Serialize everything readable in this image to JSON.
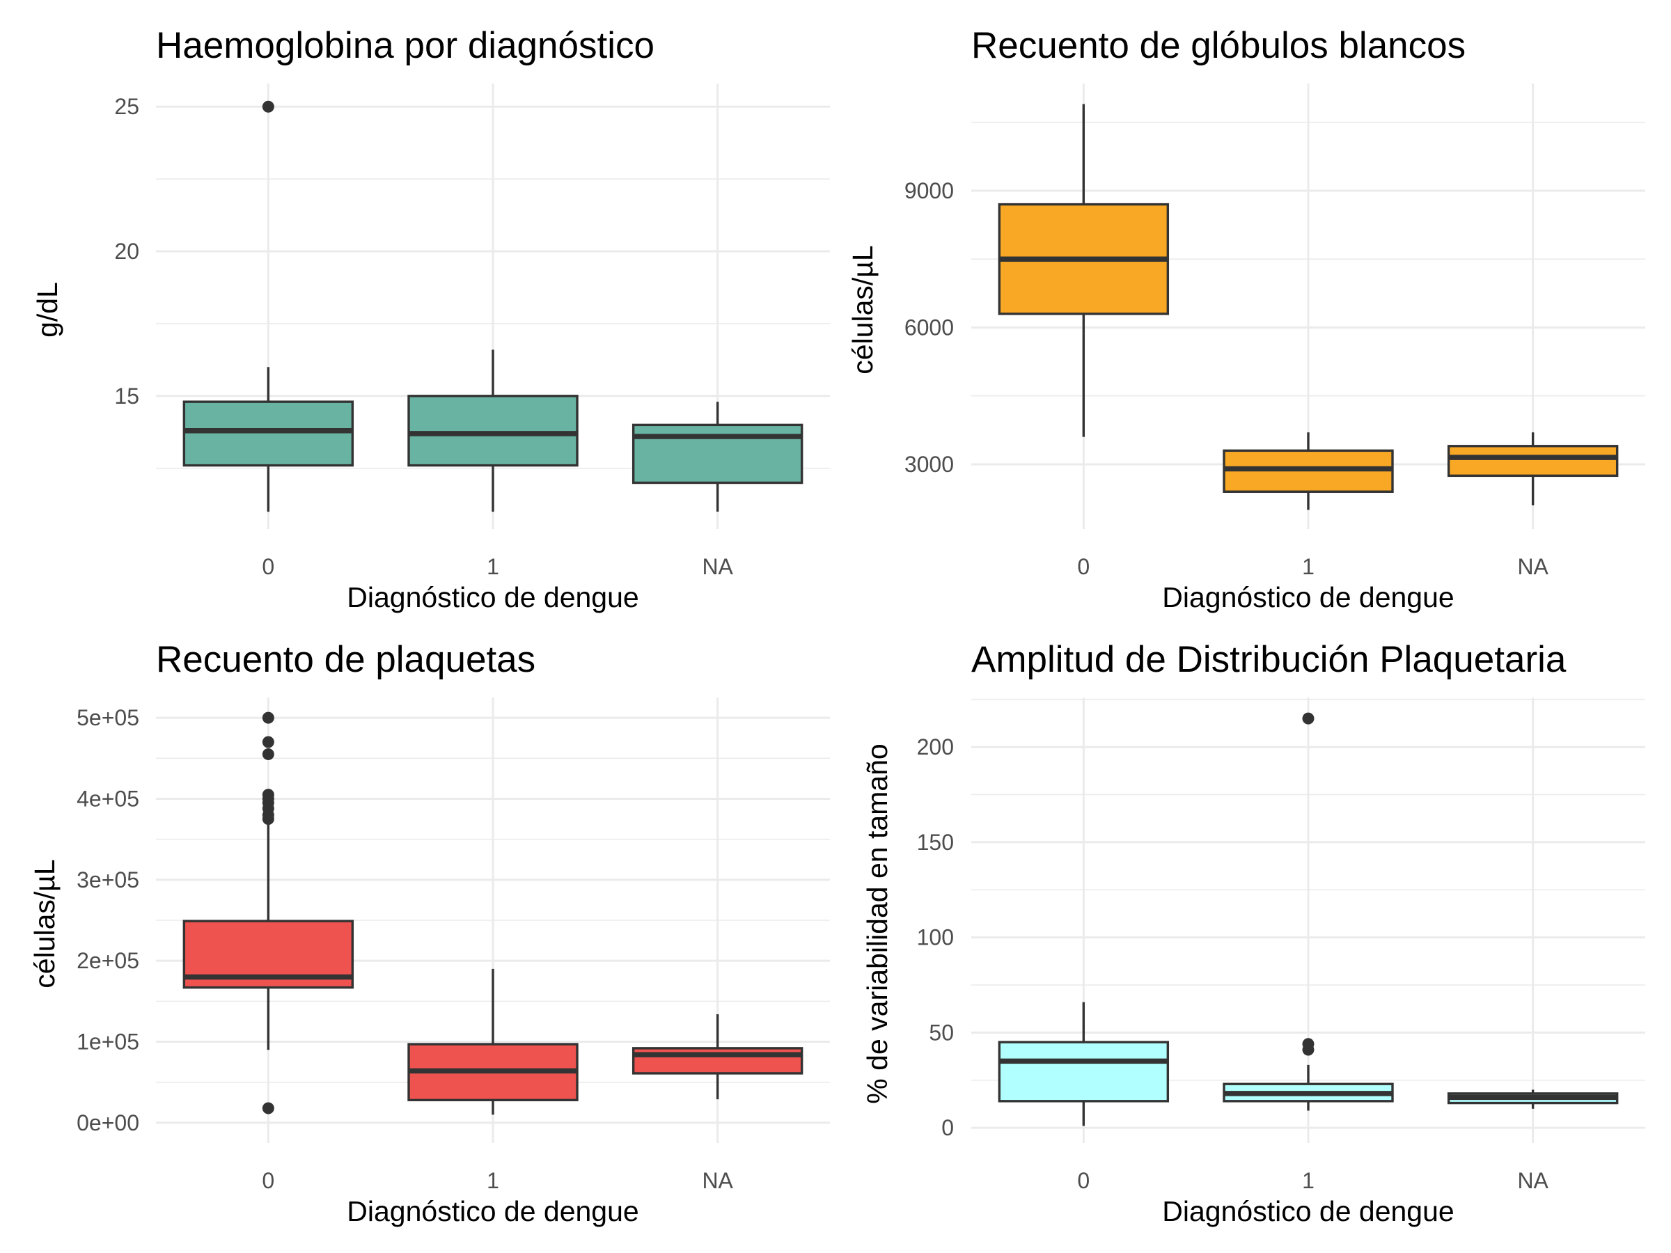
{
  "chart_data": [
    {
      "type": "boxplot",
      "title": "Haemoglobina por diagnóstico",
      "xlabel": "Diagnóstico de dengue",
      "ylabel": "g/dL",
      "categories": [
        "0",
        "1",
        "NA"
      ],
      "fill": "#69b3a2",
      "ylim": [
        10.4,
        25.8
      ],
      "yticks": [
        15,
        20,
        25
      ],
      "ytick_labels": [
        "15",
        "20",
        "25"
      ],
      "yminor": [
        12.5,
        17.5,
        22.5
      ],
      "boxes": [
        {
          "category": "0",
          "lower_whisker": 11,
          "q1": 12.6,
          "median": 13.8,
          "q3": 14.8,
          "upper_whisker": 16,
          "outliers": [
            25
          ]
        },
        {
          "category": "1",
          "lower_whisker": 11,
          "q1": 12.6,
          "median": 13.7,
          "q3": 15,
          "upper_whisker": 16.6,
          "outliers": []
        },
        {
          "category": "NA",
          "lower_whisker": 11,
          "q1": 12,
          "median": 13.6,
          "q3": 14,
          "upper_whisker": 14.8,
          "outliers": []
        }
      ]
    },
    {
      "type": "boxplot",
      "title": "Recuento de glóbulos blancos",
      "xlabel": "Diagnóstico de dengue",
      "ylabel": "células/µL",
      "categories": [
        "0",
        "1",
        "NA"
      ],
      "fill": "#f9a825",
      "ylim": [
        1580,
        11350
      ],
      "yticks": [
        3000,
        6000,
        9000
      ],
      "ytick_labels": [
        "3000",
        "6000",
        "9000"
      ],
      "yminor": [
        4500,
        7500,
        10500
      ],
      "boxes": [
        {
          "category": "0",
          "lower_whisker": 3600,
          "q1": 6300,
          "median": 7500,
          "q3": 8700,
          "upper_whisker": 10900,
          "outliers": []
        },
        {
          "category": "1",
          "lower_whisker": 2000,
          "q1": 2400,
          "median": 2900,
          "q3": 3300,
          "upper_whisker": 3700,
          "outliers": []
        },
        {
          "category": "NA",
          "lower_whisker": 2100,
          "q1": 2750,
          "median": 3150,
          "q3": 3400,
          "upper_whisker": 3700,
          "outliers": []
        }
      ]
    },
    {
      "type": "boxplot",
      "title": "Recuento de plaquetas",
      "xlabel": "Diagnóstico de dengue",
      "ylabel": "células/µL",
      "categories": [
        "0",
        "1",
        "NA"
      ],
      "fill": "#ef5350",
      "ylim": [
        -25000,
        525000
      ],
      "yticks": [
        0,
        100000,
        200000,
        300000,
        400000,
        500000
      ],
      "ytick_labels": [
        "0e+00",
        "1e+05",
        "2e+05",
        "3e+05",
        "4e+05",
        "5e+05"
      ],
      "yminor": [
        50000,
        150000,
        250000,
        350000,
        450000
      ],
      "boxes": [
        {
          "category": "0",
          "lower_whisker": 90000,
          "q1": 167000,
          "median": 180000,
          "q3": 249000,
          "upper_whisker": 372000,
          "outliers": [
            18000,
            375000,
            380000,
            388000,
            395000,
            400000,
            405000,
            455000,
            470000,
            500000
          ]
        },
        {
          "category": "1",
          "lower_whisker": 10000,
          "q1": 28000,
          "median": 64000,
          "q3": 97000,
          "upper_whisker": 190000,
          "outliers": []
        },
        {
          "category": "NA",
          "lower_whisker": 29000,
          "q1": 61000,
          "median": 84000,
          "q3": 92000,
          "upper_whisker": 134000,
          "outliers": []
        }
      ]
    },
    {
      "type": "boxplot",
      "title": "Amplitud de Distribución Plaquetaria",
      "xlabel": "Diagnóstico de dengue",
      "ylabel": "% de variabilidad en tamaño",
      "categories": [
        "0",
        "1",
        "NA"
      ],
      "fill": "#b2ffff",
      "ylim": [
        -8,
        226
      ],
      "yticks": [
        0,
        50,
        100,
        150,
        200
      ],
      "ytick_labels": [
        "0",
        "50",
        "100",
        "150",
        "200"
      ],
      "yminor": [
        25,
        75,
        125,
        175,
        225
      ],
      "boxes": [
        {
          "category": "0",
          "lower_whisker": 1,
          "q1": 14,
          "median": 35,
          "q3": 45,
          "upper_whisker": 66,
          "outliers": []
        },
        {
          "category": "1",
          "lower_whisker": 9,
          "q1": 14,
          "median": 18,
          "q3": 23,
          "upper_whisker": 33,
          "outliers": [
            41,
            44,
            215
          ]
        },
        {
          "category": "NA",
          "lower_whisker": 10,
          "q1": 13,
          "median": 16,
          "q3": 18,
          "upper_whisker": 20,
          "outliers": []
        }
      ]
    }
  ]
}
